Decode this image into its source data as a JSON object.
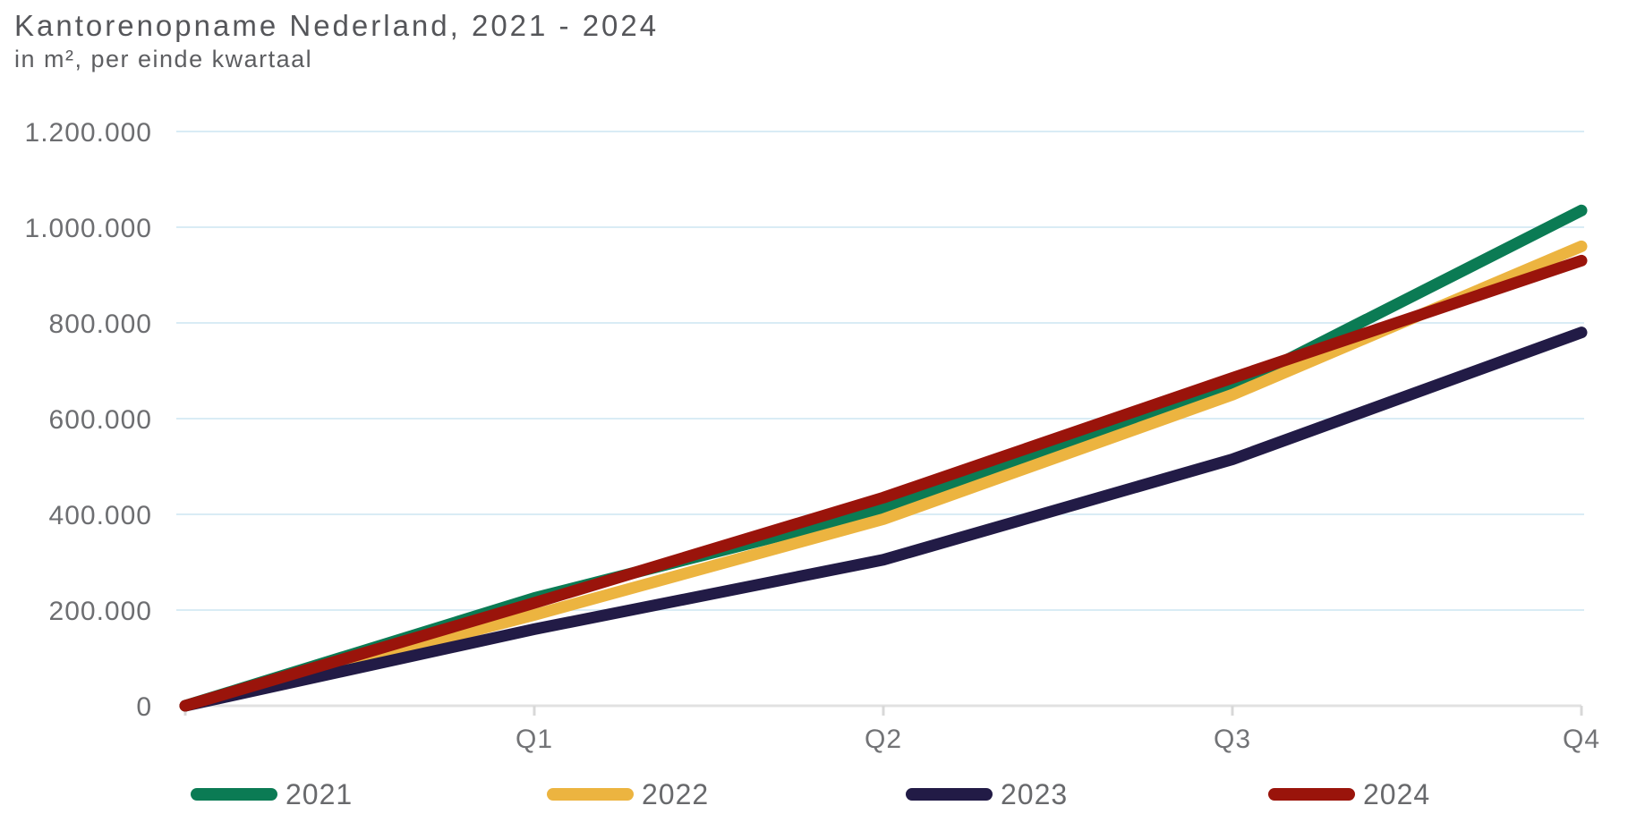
{
  "header": {
    "title": "Kantorenopname Nederland, 2021 - 2024",
    "subtitle": "in m², per einde kwartaal"
  },
  "chart_data": {
    "type": "line",
    "title": "Kantorenopname Nederland, 2021 - 2024",
    "subtitle": "in m², per einde kwartaal",
    "unit": "m²",
    "categories": [
      "",
      "Q1",
      "Q2",
      "Q3",
      "Q4"
    ],
    "x_tick_labels": [
      "Q1",
      "Q2",
      "Q3",
      "Q4"
    ],
    "y_tick_values": [
      0,
      200000,
      400000,
      600000,
      800000,
      1000000,
      1200000
    ],
    "y_tick_labels": [
      "0",
      "200.000",
      "400.000",
      "600.000",
      "800.000",
      "1.000.000",
      "1.200.000"
    ],
    "ylim": [
      0,
      1200000
    ],
    "grid": "horizontal",
    "legend_position": "bottom",
    "series": [
      {
        "name": "2021",
        "color": "#0b7b54",
        "values": [
          0,
          225000,
          410000,
          665000,
          1035000
        ]
      },
      {
        "name": "2022",
        "color": "#ecb440",
        "values": [
          0,
          190000,
          390000,
          650000,
          960000
        ]
      },
      {
        "name": "2023",
        "color": "#221b46",
        "values": [
          0,
          160000,
          305000,
          515000,
          780000
        ]
      },
      {
        "name": "2024",
        "color": "#9a140b",
        "values": [
          0,
          215000,
          435000,
          685000,
          930000
        ]
      }
    ],
    "style_colors": {
      "gridline": "#d9ecf5",
      "axis_line": "#e1e1e1",
      "axis_tick": "#d8d8d8",
      "title_text": "#55565a",
      "axis_label_text": "#6d6e71",
      "legend_text": "#68696c"
    }
  }
}
